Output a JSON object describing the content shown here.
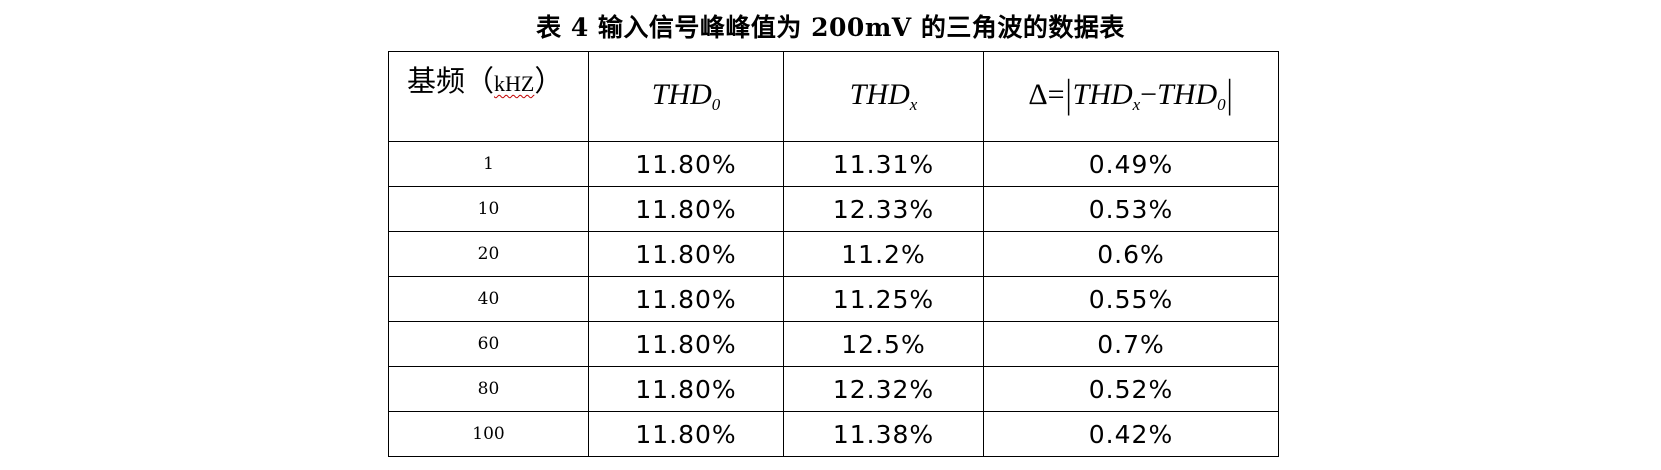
{
  "caption": "表 4 输入信号峰峰值为 200mV 的三角波的数据表",
  "header": {
    "freq_label": "基频（",
    "freq_unit": "kHZ",
    "freq_close": "）",
    "thd0": {
      "base": "THD",
      "sub": "0"
    },
    "thdx": {
      "base": "THD",
      "sub": "x"
    },
    "delta": {
      "symbol": "Δ",
      "equals": "=",
      "term1": {
        "base": "THD",
        "sub": "x"
      },
      "minus": "−",
      "term2": {
        "base": "THD",
        "sub": "0"
      }
    }
  },
  "rows": [
    {
      "freq": "1",
      "thd0": "11.80%",
      "thdx": "11.31%",
      "delta": "0.49%"
    },
    {
      "freq": "10",
      "thd0": "11.80%",
      "thdx": "12.33%",
      "delta": "0.53%"
    },
    {
      "freq": "20",
      "thd0": "11.80%",
      "thdx": "11.2%",
      "delta": "0.6%"
    },
    {
      "freq": "40",
      "thd0": "11.80%",
      "thdx": "11.25%",
      "delta": "0.55%"
    },
    {
      "freq": "60",
      "thd0": "11.80%",
      "thdx": "12.5%",
      "delta": "0.7%"
    },
    {
      "freq": "80",
      "thd0": "11.80%",
      "thdx": "12.32%",
      "delta": "0.52%"
    },
    {
      "freq": "100",
      "thd0": "11.80%",
      "thdx": "11.38%",
      "delta": "0.42%"
    }
  ]
}
